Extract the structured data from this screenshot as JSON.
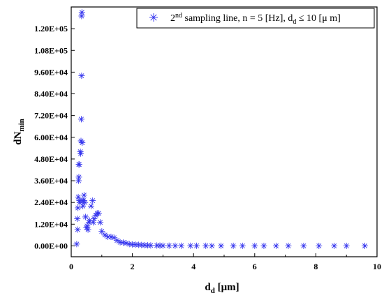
{
  "chart_data": {
    "type": "scatter",
    "xlabel": "d",
    "xlabel_sub": "d",
    "xlabel_unit": " [μm]",
    "ylabel": "dN",
    "ylabel_sub": "min",
    "xlim": [
      0,
      10
    ],
    "ylim": [
      -6000,
      132000
    ],
    "x_ticks": [
      0,
      2,
      4,
      6,
      8,
      10
    ],
    "x_tick_labels": [
      "0",
      "2",
      "4",
      "6",
      "8",
      "10"
    ],
    "y_ticks": [
      0,
      12000,
      24000,
      36000,
      48000,
      60000,
      72000,
      84000,
      96000,
      108000,
      120000
    ],
    "y_tick_labels": [
      "0.00E+00",
      "1.20E+04",
      "2.40E+04",
      "3.60E+04",
      "4.80E+04",
      "6.00E+04",
      "7.20E+04",
      "8.40E+04",
      "9.60E+04",
      "1.08E+05",
      "1.20E+05"
    ],
    "marker": "asterisk",
    "marker_color": "#3333ee",
    "grid": false,
    "legend": {
      "placement": "top-right",
      "prefix": "2",
      "sup": "nd",
      "mid": " sampling line, n = 5 [Hz], d",
      "sub": "d",
      "suffix": " ≤ 10 [μ m]"
    },
    "series": [
      {
        "x": [
          0.18,
          0.2,
          0.21,
          0.22,
          0.23,
          0.24,
          0.25,
          0.25,
          0.26,
          0.27,
          0.28,
          0.3,
          0.31,
          0.32,
          0.33,
          0.34,
          0.34,
          0.35,
          0.36,
          0.37,
          0.38,
          0.4,
          0.42,
          0.45,
          0.47,
          0.5,
          0.52,
          0.55,
          0.58,
          0.6,
          0.65,
          0.7,
          0.72,
          0.75,
          0.8,
          0.85,
          0.9,
          0.95,
          1.0,
          1.1,
          1.2,
          1.3,
          1.4,
          1.5,
          1.6,
          1.7,
          1.8,
          1.9,
          2.0,
          2.1,
          2.2,
          2.3,
          2.4,
          2.5,
          2.6,
          2.8,
          2.9,
          3.0,
          3.2,
          3.4,
          3.6,
          3.9,
          4.1,
          4.4,
          4.6,
          4.9,
          5.3,
          5.6,
          6.0,
          6.3,
          6.7,
          7.1,
          7.6,
          8.1,
          8.6,
          9.0,
          9.6
        ],
        "y": [
          1000,
          15000,
          9000,
          21000,
          27000,
          36000,
          38000,
          45000,
          45000,
          25000,
          24000,
          52000,
          51000,
          58000,
          70000,
          94000,
          127000,
          129000,
          57000,
          25000,
          22000,
          25000,
          28000,
          24000,
          16000,
          10000,
          11000,
          9000,
          13000,
          14000,
          22000,
          25000,
          13000,
          15000,
          17000,
          18000,
          18000,
          13000,
          8000,
          6000,
          5000,
          5000,
          4500,
          3000,
          2000,
          1800,
          1500,
          1000,
          800,
          700,
          600,
          500,
          400,
          300,
          250,
          200,
          150,
          120,
          100,
          90,
          80,
          70,
          60,
          50,
          40,
          35,
          30,
          25,
          20,
          15,
          12,
          10,
          8,
          6,
          5,
          4,
          3
        ]
      }
    ]
  }
}
